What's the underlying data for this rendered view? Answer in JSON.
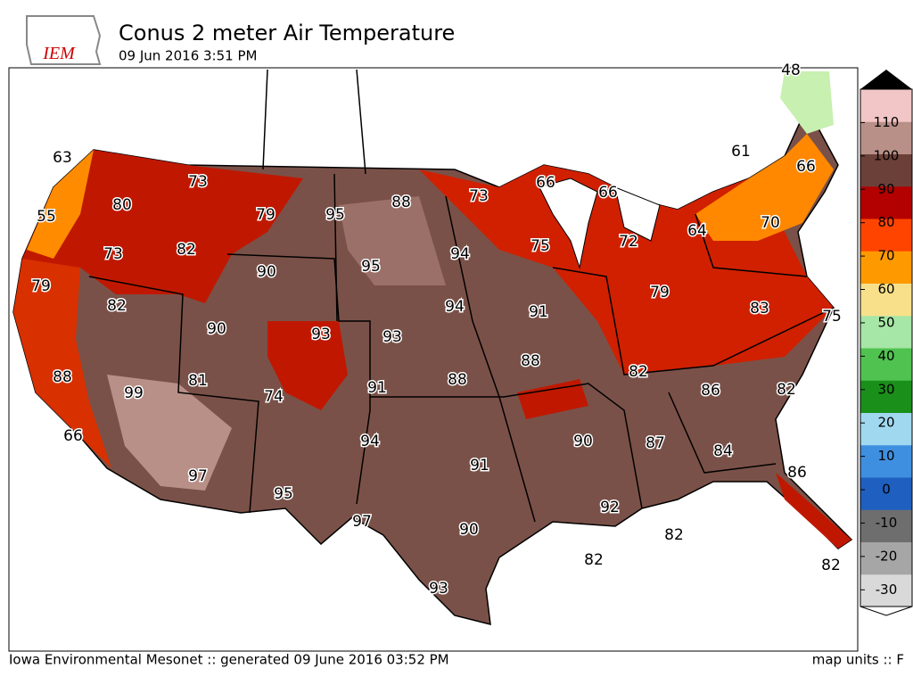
{
  "header": {
    "logo": "IEM",
    "title": "Conus 2 meter Air Temperature",
    "subtitle": "09 Jun 2016 3:51 PM"
  },
  "observations": [
    48,
    63,
    55,
    80,
    73,
    73,
    79,
    82,
    95,
    88,
    73,
    66,
    66,
    61,
    66,
    95,
    94,
    75,
    72,
    64,
    70,
    79,
    82,
    90,
    94,
    91,
    79,
    83,
    75,
    90,
    93,
    93,
    88,
    99,
    81,
    74,
    91,
    88,
    88,
    82,
    86,
    82,
    66,
    94,
    91,
    90,
    87,
    84,
    86,
    97,
    95,
    97,
    90,
    92,
    82,
    82,
    82,
    93
  ],
  "colorbar": {
    "lim": [
      -35,
      120
    ],
    "ticks": [
      -30,
      -20,
      -10,
      0,
      10,
      20,
      30,
      40,
      50,
      60,
      70,
      80,
      90,
      100,
      110
    ],
    "colors": [
      "#d9d9d9",
      "#a6a6a6",
      "#6e6e6e",
      "#1f5fbf",
      "#3f8fe0",
      "#a0d8f0",
      "#1a8f1a",
      "#4fc24f",
      "#a6e6a6",
      "#f8e08a",
      "#ff9900",
      "#ff4400",
      "#b30000",
      "#6b4038",
      "#b89088",
      "#f2c6c6"
    ]
  },
  "footer": {
    "credit": "Iowa Environmental Mesonet :: generated 09 June 2016 03:52 PM",
    "units": "map units :: F"
  }
}
